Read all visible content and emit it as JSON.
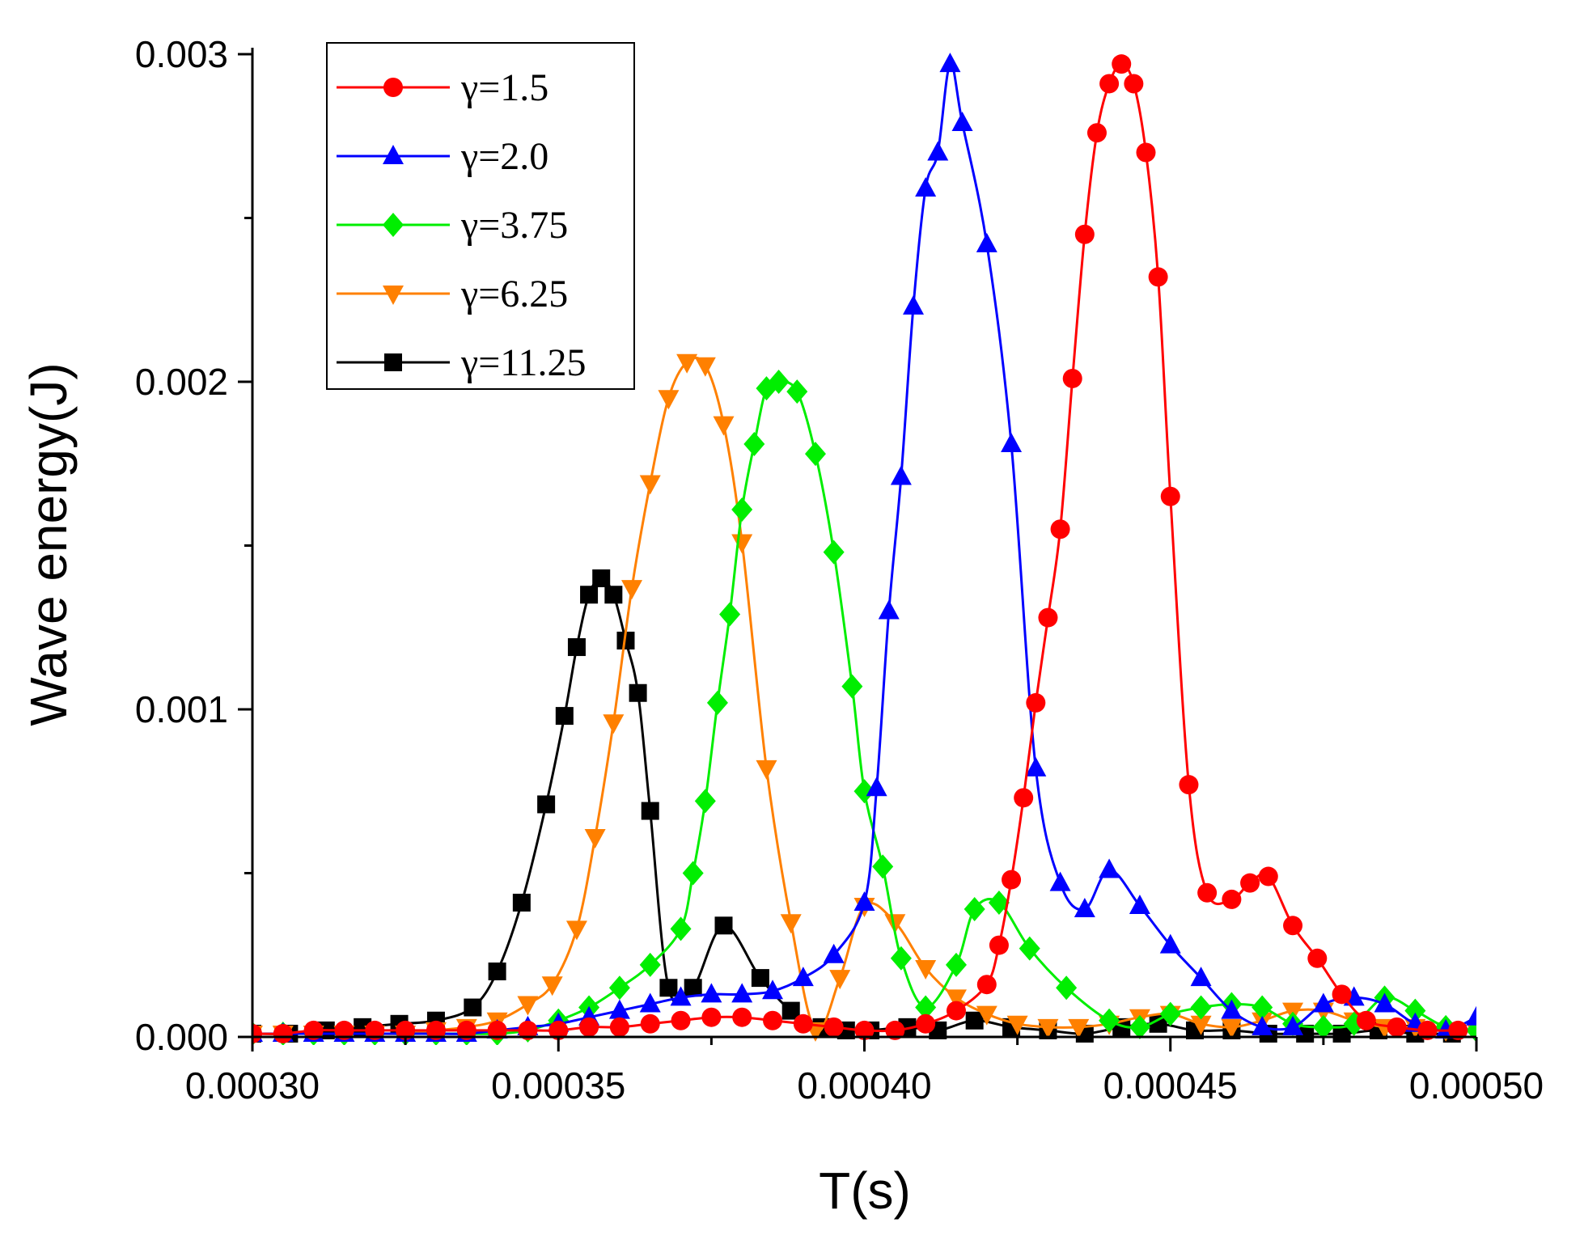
{
  "chart_data": {
    "type": "line",
    "title": "",
    "xlabel": "T(s)",
    "ylabel": "Wave energy(J)",
    "xlim": [
      0.0003,
      0.0005
    ],
    "ylim": [
      0.0,
      0.003
    ],
    "x_ticks": [
      0.0003,
      0.00035,
      0.0004,
      0.00045,
      0.0005
    ],
    "x_tick_labels": [
      "0.00030",
      "0.00035",
      "0.00040",
      "0.00045",
      "0.00050"
    ],
    "y_ticks": [
      0.0,
      0.001,
      0.002,
      0.003
    ],
    "y_tick_labels": [
      "0.000",
      "0.001",
      "0.002",
      "0.003"
    ],
    "legend_position": "top-left",
    "grid": false,
    "series": [
      {
        "name": "γ=1.5",
        "color": "#ff0000",
        "marker": "circle",
        "x": [
          0.0003,
          0.000305,
          0.00031,
          0.000315,
          0.00032,
          0.000325,
          0.00033,
          0.000335,
          0.00034,
          0.000345,
          0.00035,
          0.000355,
          0.00036,
          0.000365,
          0.00037,
          0.000375,
          0.00038,
          0.000385,
          0.00039,
          0.000395,
          0.0004,
          0.000405,
          0.00041,
          0.000415,
          0.00042,
          0.000422,
          0.000424,
          0.000426,
          0.000428,
          0.00043,
          0.000432,
          0.000434,
          0.000436,
          0.000438,
          0.00044,
          0.000442,
          0.000444,
          0.000446,
          0.000448,
          0.00045,
          0.000453,
          0.000456,
          0.00046,
          0.000463,
          0.000466,
          0.00047,
          0.000474,
          0.000478,
          0.000482,
          0.000487,
          0.000492,
          0.000497
        ],
        "y": [
          1e-05,
          1e-05,
          2e-05,
          2e-05,
          2e-05,
          2e-05,
          2e-05,
          2e-05,
          2e-05,
          2e-05,
          2e-05,
          3e-05,
          3e-05,
          4e-05,
          5e-05,
          6e-05,
          6e-05,
          5e-05,
          4e-05,
          3e-05,
          2e-05,
          2e-05,
          4e-05,
          8e-05,
          0.00016,
          0.00028,
          0.00048,
          0.00073,
          0.00102,
          0.00128,
          0.00155,
          0.00201,
          0.00245,
          0.00276,
          0.00291,
          0.00297,
          0.00291,
          0.0027,
          0.00232,
          0.00165,
          0.00077,
          0.00044,
          0.00042,
          0.00047,
          0.00049,
          0.00034,
          0.00024,
          0.00013,
          5e-05,
          3e-05,
          2e-05,
          2e-05
        ]
      },
      {
        "name": "γ=2.0",
        "color": "#0000ff",
        "marker": "triangle-up",
        "x": [
          0.0003,
          0.000305,
          0.00031,
          0.000315,
          0.00032,
          0.000325,
          0.00033,
          0.000335,
          0.00034,
          0.000345,
          0.00035,
          0.000355,
          0.00036,
          0.000365,
          0.00037,
          0.000375,
          0.00038,
          0.000385,
          0.00039,
          0.000395,
          0.0004,
          0.000402,
          0.000404,
          0.000406,
          0.000408,
          0.00041,
          0.000412,
          0.000414,
          0.000416,
          0.00042,
          0.000424,
          0.000428,
          0.000432,
          0.000436,
          0.00044,
          0.000445,
          0.00045,
          0.000455,
          0.00046,
          0.000465,
          0.00047,
          0.000475,
          0.00048,
          0.000485,
          0.00049,
          0.000495,
          0.0005
        ],
        "y": [
          1e-05,
          1e-05,
          1e-05,
          1e-05,
          1e-05,
          1e-05,
          1e-05,
          1e-05,
          2e-05,
          3e-05,
          4e-05,
          6e-05,
          8e-05,
          0.0001,
          0.00012,
          0.00013,
          0.00013,
          0.00014,
          0.00018,
          0.00025,
          0.00041,
          0.00076,
          0.0013,
          0.00171,
          0.00223,
          0.00259,
          0.0027,
          0.00297,
          0.00279,
          0.00242,
          0.00181,
          0.00082,
          0.00047,
          0.00039,
          0.00051,
          0.0004,
          0.00028,
          0.00018,
          8e-05,
          3e-05,
          3e-05,
          0.0001,
          0.00012,
          0.0001,
          4e-05,
          2e-05,
          6e-05
        ]
      },
      {
        "name": "γ=3.75",
        "color": "#00ee00",
        "marker": "diamond",
        "x": [
          0.0003,
          0.000305,
          0.00031,
          0.000315,
          0.00032,
          0.000325,
          0.00033,
          0.000335,
          0.00034,
          0.000345,
          0.00035,
          0.000355,
          0.00036,
          0.000365,
          0.00037,
          0.000372,
          0.000374,
          0.000376,
          0.000378,
          0.00038,
          0.000382,
          0.000384,
          0.000386,
          0.000389,
          0.000392,
          0.000395,
          0.000398,
          0.0004,
          0.000403,
          0.000406,
          0.00041,
          0.000415,
          0.000418,
          0.000422,
          0.000427,
          0.000433,
          0.00044,
          0.000445,
          0.00045,
          0.000455,
          0.00046,
          0.000465,
          0.00047,
          0.000475,
          0.00048,
          0.000485,
          0.00049,
          0.000495,
          0.0005
        ],
        "y": [
          1e-05,
          1e-05,
          1e-05,
          1e-05,
          1e-05,
          1e-05,
          1e-05,
          1e-05,
          1e-05,
          2e-05,
          5e-05,
          9e-05,
          0.00015,
          0.00022,
          0.00033,
          0.0005,
          0.00072,
          0.00102,
          0.00129,
          0.00161,
          0.00181,
          0.00198,
          0.002,
          0.00197,
          0.00178,
          0.00148,
          0.00107,
          0.00075,
          0.00052,
          0.00024,
          9e-05,
          0.00022,
          0.00039,
          0.00041,
          0.00027,
          0.00015,
          5e-05,
          3e-05,
          7e-05,
          9e-05,
          0.0001,
          9e-05,
          4e-05,
          3e-05,
          4e-05,
          0.00012,
          8e-05,
          3e-05,
          2e-05
        ]
      },
      {
        "name": "γ=6.25",
        "color": "#ff8000",
        "marker": "triangle-down",
        "x": [
          0.0003,
          0.000305,
          0.00031,
          0.000315,
          0.00032,
          0.000325,
          0.00033,
          0.000335,
          0.00034,
          0.000345,
          0.000349,
          0.000353,
          0.000356,
          0.000359,
          0.000362,
          0.000365,
          0.000368,
          0.000371,
          0.000374,
          0.000377,
          0.00038,
          0.000384,
          0.000388,
          0.000392,
          0.000396,
          0.0004,
          0.000405,
          0.00041,
          0.000415,
          0.00042,
          0.000425,
          0.00043,
          0.000435,
          0.00044,
          0.000445,
          0.00045,
          0.000455,
          0.00046,
          0.000465,
          0.00047,
          0.000475,
          0.00048,
          0.000485,
          0.00049,
          0.000495,
          0.0005
        ],
        "y": [
          1e-05,
          1e-05,
          1e-05,
          1e-05,
          1e-05,
          1e-05,
          2e-05,
          3e-05,
          5e-05,
          0.0001,
          0.00016,
          0.00033,
          0.00061,
          0.00096,
          0.00137,
          0.00169,
          0.00195,
          0.00206,
          0.00205,
          0.00187,
          0.00151,
          0.00082,
          0.00035,
          2e-05,
          0.00018,
          0.0004,
          0.00035,
          0.00021,
          0.00012,
          7e-05,
          4e-05,
          3e-05,
          3e-05,
          4e-05,
          6e-05,
          7e-05,
          4e-05,
          3e-05,
          5e-05,
          8e-05,
          8e-05,
          5e-05,
          3e-05,
          3e-05,
          2e-05,
          2e-05
        ]
      },
      {
        "name": "γ=11.25",
        "color": "#000000",
        "marker": "square",
        "x": [
          0.0003,
          0.000306,
          0.000312,
          0.000318,
          0.000324,
          0.00033,
          0.000336,
          0.00034,
          0.000344,
          0.000348,
          0.000351,
          0.000353,
          0.000355,
          0.000357,
          0.000359,
          0.000361,
          0.000363,
          0.000365,
          0.000368,
          0.000372,
          0.000377,
          0.000383,
          0.000388,
          0.000393,
          0.000397,
          0.000401,
          0.000407,
          0.000412,
          0.000418,
          0.000424,
          0.00043,
          0.000436,
          0.000442,
          0.000448,
          0.000454,
          0.00046,
          0.000466,
          0.000472,
          0.000478,
          0.000484,
          0.00049,
          0.000496
        ],
        "y": [
          1e-05,
          1e-05,
          2e-05,
          3e-05,
          4e-05,
          5e-05,
          9e-05,
          0.0002,
          0.00041,
          0.00071,
          0.00098,
          0.00119,
          0.00135,
          0.0014,
          0.00135,
          0.00121,
          0.00105,
          0.00069,
          0.00015,
          0.00015,
          0.00034,
          0.00018,
          8e-05,
          3e-05,
          2e-05,
          2e-05,
          3e-05,
          2e-05,
          5e-05,
          3e-05,
          2e-05,
          1e-05,
          3e-05,
          4e-05,
          2e-05,
          2e-05,
          1e-05,
          1e-05,
          1e-05,
          2e-05,
          1e-05,
          1e-05
        ]
      }
    ]
  }
}
